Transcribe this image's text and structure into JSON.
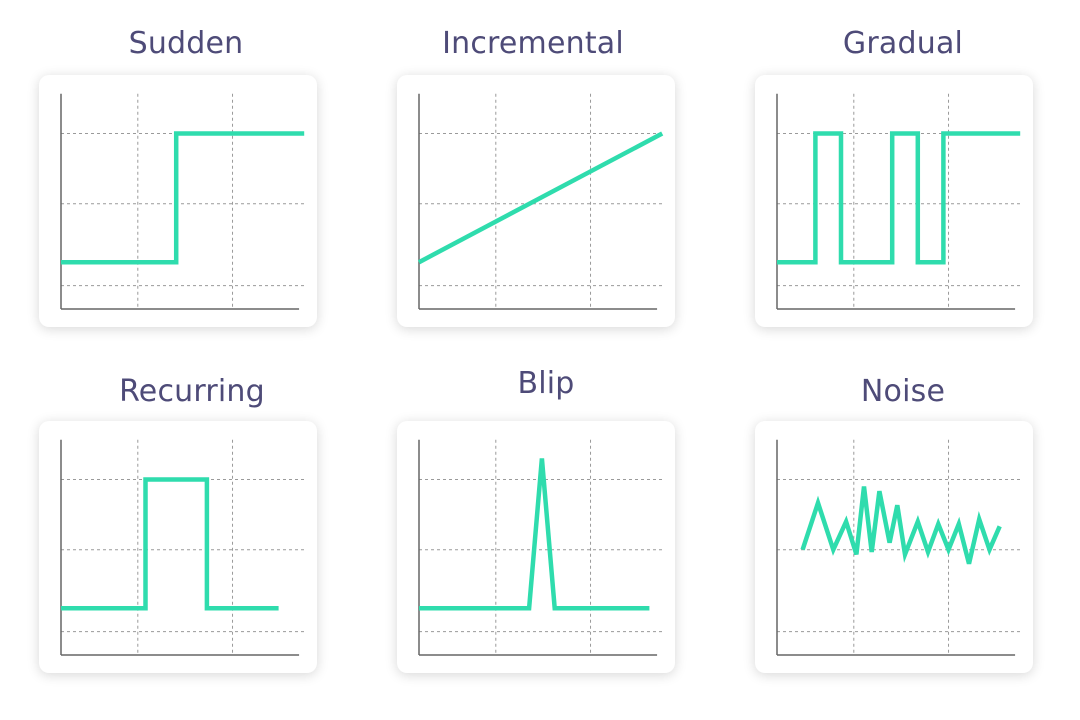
{
  "colors": {
    "line": "#2fdcad",
    "title": "#4e4b78",
    "axis": "#666666",
    "grid": "#9a9a9a"
  },
  "chart_data": [
    {
      "type": "line",
      "title": "Sudden",
      "xlim": [
        0,
        10
      ],
      "ylim": [
        0,
        10
      ],
      "x": [
        0,
        4.5,
        4.5,
        9.5
      ],
      "y": [
        2,
        2,
        7.5,
        7.5
      ]
    },
    {
      "type": "line",
      "title": "Incremental",
      "xlim": [
        0,
        10
      ],
      "ylim": [
        0,
        10
      ],
      "x": [
        0,
        9.5
      ],
      "y": [
        2,
        7.5
      ]
    },
    {
      "type": "line",
      "title": "Gradual",
      "xlim": [
        0,
        10
      ],
      "ylim": [
        0,
        10
      ],
      "x": [
        0,
        1.5,
        1.5,
        2.5,
        2.5,
        4.5,
        4.5,
        5.5,
        5.5,
        6.5,
        6.5,
        9.5
      ],
      "y": [
        2,
        2,
        7.5,
        7.5,
        2,
        2,
        7.5,
        7.5,
        2,
        2,
        7.5,
        7.5
      ]
    },
    {
      "type": "line",
      "title": "Recurring",
      "xlim": [
        0,
        10
      ],
      "ylim": [
        0,
        10
      ],
      "x": [
        0,
        3.3,
        3.3,
        5.7,
        5.7,
        8.5
      ],
      "y": [
        2,
        2,
        7.5,
        7.5,
        2,
        2
      ]
    },
    {
      "type": "line",
      "title": "Blip",
      "xlim": [
        0,
        10
      ],
      "ylim": [
        0,
        10
      ],
      "x": [
        0,
        4.3,
        4.8,
        5.3,
        9
      ],
      "y": [
        2,
        2,
        8.4,
        2,
        2
      ]
    },
    {
      "type": "line",
      "title": "Noise",
      "xlim": [
        0,
        10
      ],
      "ylim": [
        0,
        10
      ],
      "x": [
        1,
        1.6,
        2.2,
        2.7,
        3.1,
        3.4,
        3.7,
        4.0,
        4.4,
        4.7,
        5.0,
        5.5,
        5.9,
        6.3,
        6.7,
        7.1,
        7.5,
        7.9,
        8.3,
        8.7
      ],
      "y": [
        4.5,
        6.5,
        4.5,
        5.7,
        4.3,
        7.2,
        4.4,
        7.0,
        4.8,
        6.4,
        4.3,
        5.7,
        4.4,
        5.6,
        4.5,
        5.6,
        3.9,
        5.8,
        4.5,
        5.5
      ]
    }
  ]
}
